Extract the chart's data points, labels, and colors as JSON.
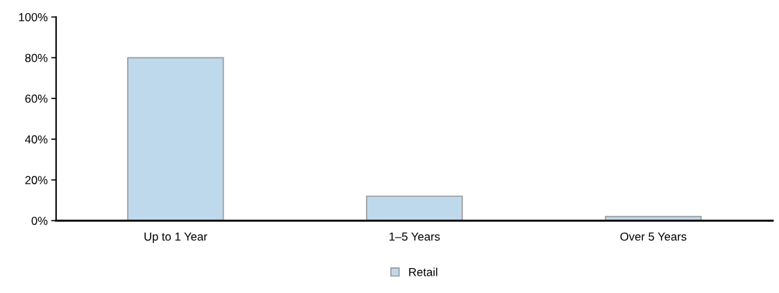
{
  "chart_data": {
    "type": "bar",
    "categories": [
      "Up to 1 Year",
      "1–5 Years",
      "Over 5 Years"
    ],
    "series": [
      {
        "name": "Retail",
        "color": "#bfd9ec",
        "values": [
          80,
          12,
          2
        ]
      }
    ],
    "ylim": [
      0,
      100
    ],
    "yticks": [
      {
        "value": 0,
        "label": "0%"
      },
      {
        "value": 20,
        "label": "20%"
      },
      {
        "value": 40,
        "label": "40%"
      },
      {
        "value": 60,
        "label": "60%"
      },
      {
        "value": 80,
        "label": "80%"
      },
      {
        "value": 100,
        "label": "100%"
      }
    ],
    "grid": false,
    "legend": "bottom"
  }
}
